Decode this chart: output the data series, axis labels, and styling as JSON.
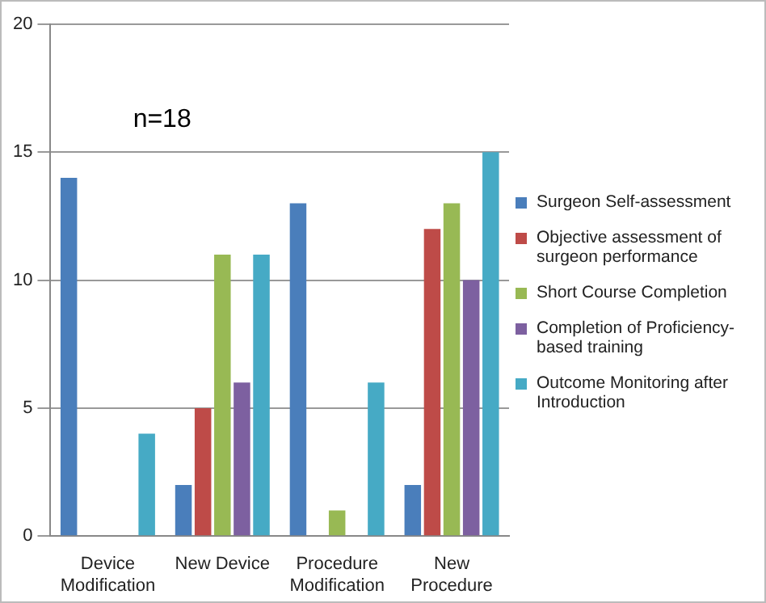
{
  "chart_data": {
    "type": "bar",
    "categories": [
      "Device Modification",
      "New Device",
      "Procedure Modification",
      "New Procedure"
    ],
    "series": [
      {
        "name": "Surgeon Self-assessment",
        "color": "#4a7ebb",
        "values": [
          14,
          2,
          13,
          2
        ]
      },
      {
        "name": "Objective assessment of surgeon performance",
        "color": "#be4b48",
        "values": [
          0,
          5,
          0,
          12
        ]
      },
      {
        "name": "Short Course Completion",
        "color": "#98b954",
        "values": [
          0,
          11,
          1,
          13
        ]
      },
      {
        "name": "Completion of Proficiency-based training",
        "color": "#7d60a0",
        "values": [
          0,
          6,
          0,
          10
        ]
      },
      {
        "name": "Outcome Monitoring after Introduction",
        "color": "#46aac5",
        "values": [
          4,
          11,
          6,
          15
        ]
      }
    ],
    "ylim": [
      0,
      20
    ],
    "yticks": [
      0,
      5,
      10,
      15,
      20
    ],
    "grid": "y",
    "legend": "right",
    "annotations": [
      "n=18"
    ]
  }
}
